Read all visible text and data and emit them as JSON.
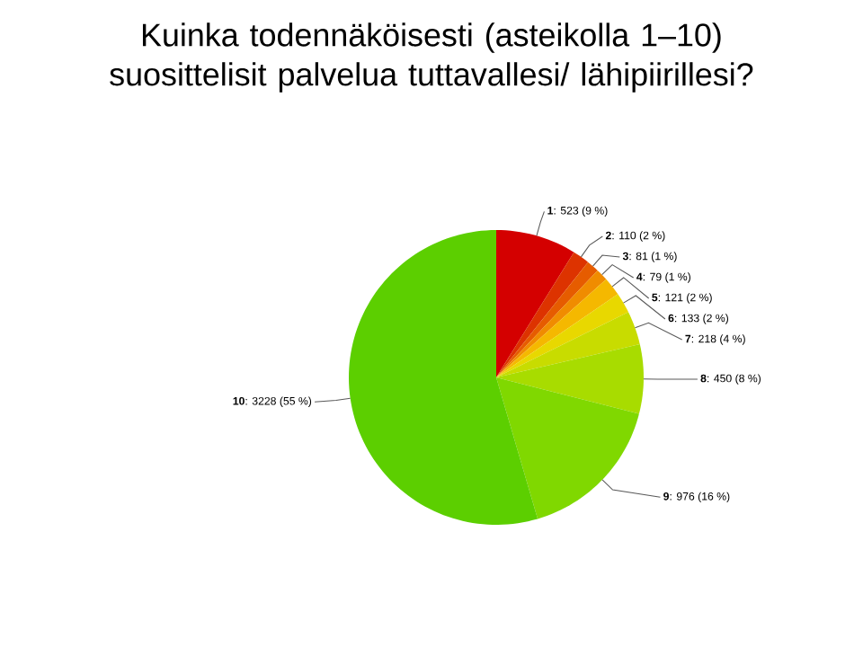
{
  "chart_data": {
    "type": "pie",
    "title": "Kuinka todennäköisesti (asteikolla 1–10) suosittelisit palvelua tuttavallesi/ lähipiirillesi?",
    "categories": [
      "1",
      "2",
      "3",
      "4",
      "5",
      "6",
      "7",
      "8",
      "9",
      "10"
    ],
    "values": [
      523,
      110,
      81,
      79,
      121,
      133,
      218,
      450,
      976,
      3228
    ],
    "value_labels": [
      ": 523 (9 %)",
      ": 110 (2 %)",
      ": 81 (1 %)",
      ": 79 (1 %)",
      ": 121 (2 %)",
      ": 133 (2 %)",
      ": 218 (4 %)",
      ": 450 (8 %)",
      ": 976 (16 %)",
      ": 3228 (55 %)"
    ],
    "colors": [
      "#d40000",
      "#dd3300",
      "#e65c00",
      "#f08c00",
      "#f5b800",
      "#e8d800",
      "#c8dc00",
      "#a8dc00",
      "#80d800",
      "#5ccf00"
    ]
  }
}
